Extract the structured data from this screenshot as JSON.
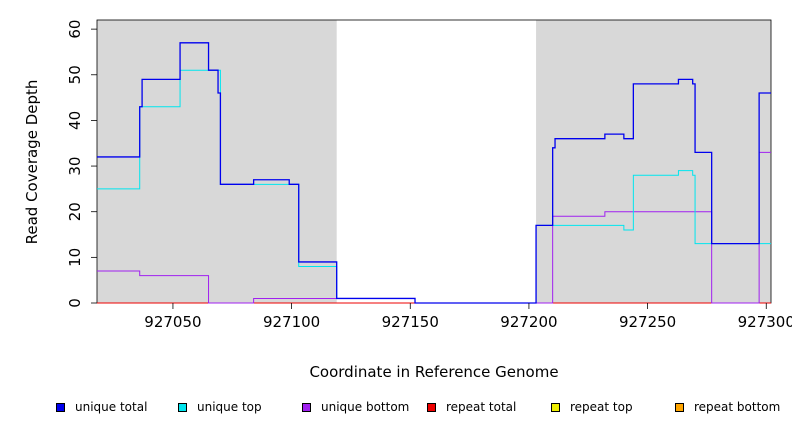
{
  "chart_data": {
    "type": "line",
    "xlabel": "Coordinate in Reference Genome",
    "ylabel": "Read Coverage Depth",
    "xlim": [
      927018,
      927302
    ],
    "ylim": [
      0,
      62
    ],
    "x_ticks": [
      927050,
      927100,
      927150,
      927200,
      927250,
      927300
    ],
    "y_ticks": [
      0,
      10,
      20,
      30,
      40,
      50,
      60
    ],
    "grid": false,
    "shaded_regions": [
      {
        "x_start": 927018,
        "x_end": 927119,
        "color": "#d8d8d8"
      },
      {
        "x_start": 927203,
        "x_end": 927302,
        "color": "#d8d8d8"
      }
    ],
    "legend_position": "bottom",
    "series": [
      {
        "name": "unique total",
        "color": "#0000ee",
        "points": [
          [
            927018,
            32
          ],
          [
            927036,
            32
          ],
          [
            927036,
            43
          ],
          [
            927037,
            43
          ],
          [
            927037,
            49
          ],
          [
            927053,
            49
          ],
          [
            927053,
            57
          ],
          [
            927065,
            57
          ],
          [
            927065,
            51
          ],
          [
            927069,
            51
          ],
          [
            927069,
            46
          ],
          [
            927070,
            46
          ],
          [
            927070,
            26
          ],
          [
            927084,
            26
          ],
          [
            927084,
            27
          ],
          [
            927099,
            27
          ],
          [
            927099,
            26
          ],
          [
            927103,
            26
          ],
          [
            927103,
            9
          ],
          [
            927119,
            9
          ],
          [
            927119,
            1
          ],
          [
            927152,
            1
          ],
          [
            927152,
            0
          ],
          [
            927203,
            0
          ],
          [
            927203,
            17
          ],
          [
            927210,
            17
          ],
          [
            927210,
            34
          ],
          [
            927211,
            34
          ],
          [
            927211,
            36
          ],
          [
            927232,
            36
          ],
          [
            927232,
            37
          ],
          [
            927240,
            37
          ],
          [
            927240,
            36
          ],
          [
            927244,
            36
          ],
          [
            927244,
            48
          ],
          [
            927263,
            48
          ],
          [
            927263,
            49
          ],
          [
            927269,
            49
          ],
          [
            927269,
            48
          ],
          [
            927270,
            48
          ],
          [
            927270,
            33
          ],
          [
            927277,
            33
          ],
          [
            927277,
            13
          ],
          [
            927297,
            13
          ],
          [
            927297,
            46
          ],
          [
            927302,
            46
          ]
        ]
      },
      {
        "name": "unique top",
        "color": "#00e5ee",
        "points": [
          [
            927018,
            25
          ],
          [
            927036,
            25
          ],
          [
            927036,
            43
          ],
          [
            927053,
            43
          ],
          [
            927053,
            51
          ],
          [
            927070,
            51
          ],
          [
            927070,
            26
          ],
          [
            927084,
            26
          ],
          [
            927084,
            26
          ],
          [
            927103,
            26
          ],
          [
            927103,
            8
          ],
          [
            927119,
            8
          ],
          [
            927119,
            1
          ],
          [
            927152,
            1
          ],
          [
            927152,
            0
          ],
          [
            927203,
            0
          ],
          [
            927203,
            17
          ],
          [
            927240,
            17
          ],
          [
            927240,
            16
          ],
          [
            927244,
            16
          ],
          [
            927244,
            28
          ],
          [
            927263,
            28
          ],
          [
            927263,
            29
          ],
          [
            927269,
            29
          ],
          [
            927269,
            28
          ],
          [
            927270,
            28
          ],
          [
            927270,
            13
          ],
          [
            927302,
            13
          ]
        ]
      },
      {
        "name": "unique bottom",
        "color": "#a020f0",
        "points": [
          [
            927018,
            7
          ],
          [
            927036,
            7
          ],
          [
            927036,
            6
          ],
          [
            927065,
            6
          ],
          [
            927065,
            0
          ],
          [
            927084,
            0
          ],
          [
            927084,
            1
          ],
          [
            927119,
            1
          ],
          [
            927119,
            1
          ],
          [
            927152,
            1
          ],
          [
            927152,
            0
          ],
          [
            927210,
            0
          ],
          [
            927210,
            19
          ],
          [
            927232,
            19
          ],
          [
            927232,
            20
          ],
          [
            927277,
            20
          ],
          [
            927277,
            0
          ],
          [
            927297,
            0
          ],
          [
            927297,
            33
          ],
          [
            927302,
            33
          ]
        ]
      },
      {
        "name": "repeat total",
        "color": "#ee0000",
        "points": [
          [
            927018,
            0
          ],
          [
            927302,
            0
          ]
        ]
      },
      {
        "name": "repeat top",
        "color": "#eeee00",
        "points": [
          [
            927018,
            0
          ],
          [
            927302,
            0
          ]
        ]
      },
      {
        "name": "repeat bottom",
        "color": "#ffa500",
        "points": [
          [
            927018,
            0
          ],
          [
            927302,
            0
          ]
        ]
      }
    ]
  }
}
